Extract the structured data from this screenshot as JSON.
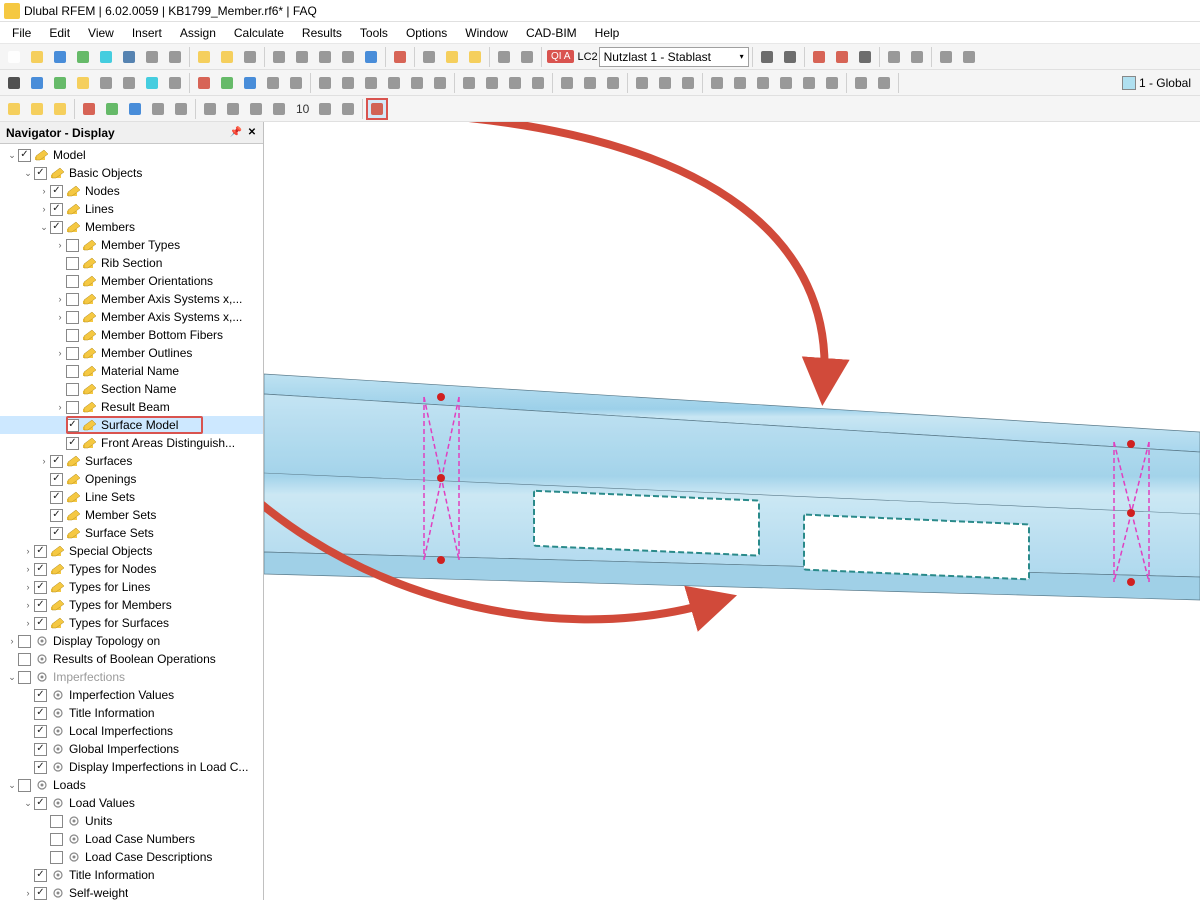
{
  "app": {
    "title": "Dlubal RFEM | 6.02.0059 | KB1799_Member.rf6* | FAQ",
    "icon_color": "#f5c842"
  },
  "menu": [
    "File",
    "Edit",
    "View",
    "Insert",
    "Assign",
    "Calculate",
    "Results",
    "Tools",
    "Options",
    "Window",
    "CAD-BIM",
    "Help"
  ],
  "toolbar1_icons": [
    "doc-new",
    "folder-open",
    "circle-blue",
    "cube-green",
    "cube-cyan",
    "save",
    "undo",
    "redo",
    "sep",
    "cube",
    "cube",
    "dot",
    "sep",
    "grid",
    "grid2",
    "grid3",
    "grid4",
    "arrow-right",
    "sep",
    "run",
    "sep",
    "table",
    "lamp",
    "sun",
    "sep",
    "align-l",
    "align-r",
    "sep",
    "indicator-qia",
    "lc-combo",
    "sep",
    "nav-left",
    "nav-right",
    "sep",
    "x-red",
    "x-mark",
    "dots",
    "sep",
    "toggle1",
    "toggle2",
    "sep",
    "home",
    "layers"
  ],
  "toolbar2_icons": [
    "cursor",
    "node",
    "line",
    "member",
    "square",
    "triangle",
    "surface",
    "diag",
    "sep",
    "axis-x",
    "axis-y",
    "axis-z",
    "cone",
    "pyr",
    "sep",
    "view-top",
    "view-front",
    "view-iso",
    "dim",
    "eye",
    "arc",
    "sep",
    "clip",
    "intersect",
    "rotate",
    "scale",
    "sep",
    "filter",
    "layers2",
    "select",
    "sep",
    "rect",
    "rect2",
    "rect3",
    "sep",
    "tool-a",
    "tool-b",
    "tool-c",
    "tool-d",
    "tool-e",
    "tool-f",
    "sep",
    "extra1",
    "extra2",
    "sep",
    "global"
  ],
  "toolbar3_icons": [
    "cube1",
    "cube2",
    "cube3",
    "sep",
    "ax-x",
    "ax-y",
    "ax-z",
    "sphere",
    "surf",
    "sep",
    "plane1",
    "plane2",
    "dash",
    "bracket",
    "num-10",
    "align",
    "print",
    "sep",
    "grid-hl"
  ],
  "toolbar1": {
    "lc_badge": "QI A",
    "lc_label": "LC2",
    "lc_name": "Nutzlast 1 - Stablast",
    "global_label": "1 - Global"
  },
  "navigator": {
    "title": "Navigator - Display",
    "expander": {
      "expanded": "⌄",
      "collapsed": "›"
    },
    "tree": [
      {
        "d": 0,
        "e": "o",
        "c": true,
        "ic": "pencil",
        "t": "Model"
      },
      {
        "d": 1,
        "e": "o",
        "c": true,
        "ic": "pencil",
        "t": "Basic Objects"
      },
      {
        "d": 2,
        "e": "c",
        "c": true,
        "ic": "pencil",
        "t": "Nodes"
      },
      {
        "d": 2,
        "e": "c",
        "c": true,
        "ic": "pencil",
        "t": "Lines"
      },
      {
        "d": 2,
        "e": "o",
        "c": true,
        "ic": "pencil",
        "t": "Members"
      },
      {
        "d": 3,
        "e": "c",
        "c": false,
        "ic": "pencil",
        "t": "Member Types"
      },
      {
        "d": 3,
        "e": "",
        "c": false,
        "ic": "pencil",
        "t": "Rib Section"
      },
      {
        "d": 3,
        "e": "",
        "c": false,
        "ic": "pencil",
        "t": "Member Orientations"
      },
      {
        "d": 3,
        "e": "c",
        "c": false,
        "ic": "pencil",
        "t": "Member Axis Systems x,..."
      },
      {
        "d": 3,
        "e": "c",
        "c": false,
        "ic": "pencil",
        "t": "Member Axis Systems x,..."
      },
      {
        "d": 3,
        "e": "",
        "c": false,
        "ic": "pencil",
        "t": "Member Bottom Fibers"
      },
      {
        "d": 3,
        "e": "c",
        "c": false,
        "ic": "pencil",
        "t": "Member Outlines"
      },
      {
        "d": 3,
        "e": "",
        "c": false,
        "ic": "pencil",
        "t": "Material Name"
      },
      {
        "d": 3,
        "e": "",
        "c": false,
        "ic": "pencil",
        "t": "Section Name"
      },
      {
        "d": 3,
        "e": "c",
        "c": false,
        "ic": "pencil",
        "t": "Result Beam"
      },
      {
        "d": 3,
        "e": "",
        "c": true,
        "ic": "pencil",
        "t": "Surface Model",
        "hl": true,
        "redbox": true
      },
      {
        "d": 3,
        "e": "",
        "c": true,
        "ic": "pencil",
        "t": "Front Areas Distinguish..."
      },
      {
        "d": 2,
        "e": "c",
        "c": true,
        "ic": "pencil",
        "t": "Surfaces"
      },
      {
        "d": 2,
        "e": "",
        "c": true,
        "ic": "pencil",
        "t": "Openings"
      },
      {
        "d": 2,
        "e": "",
        "c": true,
        "ic": "pencil",
        "t": "Line Sets"
      },
      {
        "d": 2,
        "e": "",
        "c": true,
        "ic": "pencil",
        "t": "Member Sets"
      },
      {
        "d": 2,
        "e": "",
        "c": true,
        "ic": "pencil",
        "t": "Surface Sets"
      },
      {
        "d": 1,
        "e": "c",
        "c": true,
        "ic": "pencil",
        "t": "Special Objects"
      },
      {
        "d": 1,
        "e": "c",
        "c": true,
        "ic": "pencil",
        "t": "Types for Nodes"
      },
      {
        "d": 1,
        "e": "c",
        "c": true,
        "ic": "pencil",
        "t": "Types for Lines"
      },
      {
        "d": 1,
        "e": "c",
        "c": true,
        "ic": "pencil",
        "t": "Types for Members"
      },
      {
        "d": 1,
        "e": "c",
        "c": true,
        "ic": "pencil",
        "t": "Types for Surfaces"
      },
      {
        "d": 0,
        "e": "c",
        "c": false,
        "ic": "obj",
        "t": "Display Topology on"
      },
      {
        "d": 0,
        "e": "",
        "c": false,
        "ic": "obj",
        "t": "Results of Boolean Operations"
      },
      {
        "d": 0,
        "e": "o",
        "c": false,
        "ic": "obj",
        "t": "Imperfections",
        "dim": true
      },
      {
        "d": 1,
        "e": "",
        "c": true,
        "ic": "obj",
        "t": "Imperfection Values"
      },
      {
        "d": 1,
        "e": "",
        "c": true,
        "ic": "obj",
        "t": "Title Information"
      },
      {
        "d": 1,
        "e": "",
        "c": true,
        "ic": "obj",
        "t": "Local Imperfections"
      },
      {
        "d": 1,
        "e": "",
        "c": true,
        "ic": "obj",
        "t": "Global Imperfections"
      },
      {
        "d": 1,
        "e": "",
        "c": true,
        "ic": "obj",
        "t": "Display Imperfections in Load C..."
      },
      {
        "d": 0,
        "e": "o",
        "c": false,
        "ic": "obj",
        "t": "Loads"
      },
      {
        "d": 1,
        "e": "o",
        "c": true,
        "ic": "obj",
        "t": "Load Values"
      },
      {
        "d": 2,
        "e": "",
        "c": false,
        "ic": "obj",
        "t": "Units"
      },
      {
        "d": 2,
        "e": "",
        "c": false,
        "ic": "obj",
        "t": "Load Case Numbers"
      },
      {
        "d": 2,
        "e": "",
        "c": false,
        "ic": "obj",
        "t": "Load Case Descriptions"
      },
      {
        "d": 1,
        "e": "",
        "c": true,
        "ic": "obj",
        "t": "Title Information"
      },
      {
        "d": 1,
        "e": "c",
        "c": true,
        "ic": "obj",
        "t": "Self-weight"
      }
    ]
  },
  "viewport": {
    "beam": {
      "fill_light": "#bfe2f2",
      "fill_mid": "#a8d6ed",
      "fill_dark": "#8cc7e3",
      "edge": "#5a7a8a",
      "opening_stroke": "#2a8a8a",
      "opening_dash": "6 3",
      "magenta": "#e040c0",
      "node_color": "#d02020"
    },
    "arrows": {
      "color": "#d14a3a",
      "width": 8
    }
  }
}
